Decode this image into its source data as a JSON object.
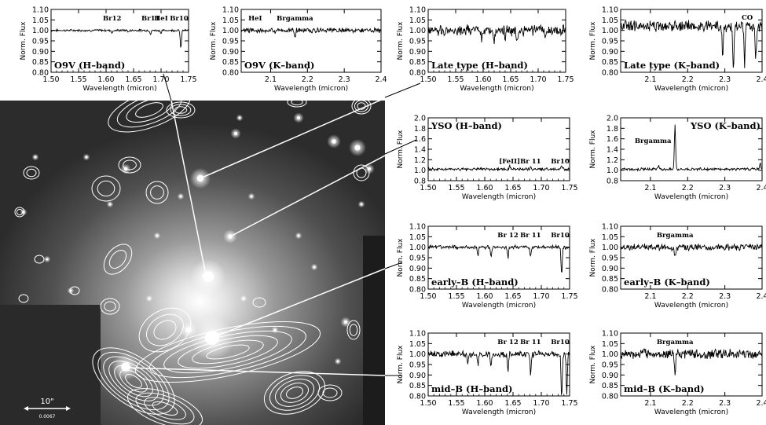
{
  "image": {
    "scale_bar_label": "10\"",
    "scale_bar_sublabel": "0.0067"
  },
  "chart_data": [
    {
      "id": "o9v-h",
      "type": "line",
      "title": "O9V (H–band)",
      "xlabel": "Wavelength (micron)",
      "ylabel": "Norm. Flux",
      "xlim": [
        1.5,
        1.75
      ],
      "ylim": [
        0.8,
        1.1
      ],
      "xticks": [
        "1.50",
        "1.55",
        "1.60",
        "1.65",
        "1.70",
        "1.75"
      ],
      "yticks": [
        "0.80",
        "0.85",
        "0.90",
        "0.95",
        "1.00",
        "1.05",
        "1.10"
      ],
      "lines": [
        {
          "label": "Br12",
          "x": 1.611
        },
        {
          "label": "Br11",
          "x": 1.681
        },
        {
          "label": "HeI",
          "x": 1.7
        },
        {
          "label": "Br10",
          "x": 1.736
        }
      ],
      "series": [
        {
          "baseline": 1.0,
          "noise": 0.004,
          "features": [
            [
              1.611,
              -0.012
            ],
            [
              1.641,
              -0.01
            ],
            [
              1.681,
              -0.02
            ],
            [
              1.7,
              -0.015
            ],
            [
              1.736,
              -0.09
            ]
          ]
        }
      ]
    },
    {
      "id": "o9v-k",
      "type": "line",
      "title": "O9V (K–band)",
      "xlabel": "Wavelength (micron)",
      "ylabel": "Norm. Flux",
      "xlim": [
        2.02,
        2.4
      ],
      "ylim": [
        0.8,
        1.1
      ],
      "xticks": [
        "2.1",
        "2.2",
        "2.3",
        "2.4"
      ],
      "xtick_values": [
        2.1,
        2.2,
        2.3,
        2.4
      ],
      "yticks": [
        "0.80",
        "0.85",
        "0.90",
        "0.95",
        "1.00",
        "1.05",
        "1.10"
      ],
      "lines": [
        {
          "label": "HeI",
          "x": 2.058
        },
        {
          "label": "Brgamma",
          "x": 2.166
        }
      ],
      "series": [
        {
          "baseline": 1.0,
          "noise": 0.009,
          "features": [
            [
              2.112,
              -0.015
            ],
            [
              2.166,
              -0.035
            ]
          ]
        }
      ]
    },
    {
      "id": "late-h",
      "type": "line",
      "title": "Late type (H–band)",
      "xlabel": "Wavelength (micron)",
      "ylabel": "Norm. Flux",
      "xlim": [
        1.5,
        1.75
      ],
      "ylim": [
        0.8,
        1.1
      ],
      "xticks": [
        "1.50",
        "1.55",
        "1.60",
        "1.65",
        "1.70",
        "1.75"
      ],
      "yticks": [
        "0.80",
        "0.85",
        "0.90",
        "0.95",
        "1.00",
        "1.05",
        "1.10"
      ],
      "lines": [],
      "series": [
        {
          "baseline": 1.0,
          "noise": 0.02,
          "features": [
            [
              1.598,
              -0.05
            ],
            [
              1.62,
              -0.07
            ],
            [
              1.64,
              -0.04
            ],
            [
              1.662,
              -0.05
            ],
            [
              1.713,
              -0.04
            ]
          ]
        }
      ]
    },
    {
      "id": "late-k",
      "type": "line",
      "title": "Late type (K–band)",
      "xlabel": "Wavelength (micron)",
      "ylabel": "Norm. Flux",
      "xlim": [
        2.02,
        2.4
      ],
      "ylim": [
        0.8,
        1.1
      ],
      "xticks": [
        "2.1",
        "2.2",
        "2.3",
        "2.4"
      ],
      "xtick_values": [
        2.1,
        2.2,
        2.3,
        2.4
      ],
      "yticks": [
        "0.80",
        "0.85",
        "0.90",
        "0.95",
        "1.00",
        "1.05",
        "1.10"
      ],
      "lines": [
        {
          "label": "CO",
          "x": 2.36
        }
      ],
      "series": [
        {
          "baseline": 1.02,
          "noise": 0.02,
          "features": [
            [
              2.294,
              -0.13
            ],
            [
              2.323,
              -0.2
            ],
            [
              2.353,
              -0.18
            ],
            [
              2.383,
              -0.17
            ]
          ]
        }
      ]
    },
    {
      "id": "yso-h",
      "type": "line",
      "title": "YSO (H–band)",
      "xlabel": "Wavelength (micron)",
      "ylabel": "Norm. Flux",
      "xlim": [
        1.5,
        1.75
      ],
      "ylim": [
        0.8,
        2.0
      ],
      "xticks": [
        "1.50",
        "1.55",
        "1.60",
        "1.65",
        "1.70",
        "1.75"
      ],
      "yticks": [
        "0.8",
        "1.0",
        "1.2",
        "1.4",
        "1.6",
        "1.8",
        "2.0"
      ],
      "lines": [
        {
          "label": "[FeII]",
          "x": 1.644
        },
        {
          "label": "Br 11",
          "x": 1.681
        },
        {
          "label": "Br10",
          "x": 1.736
        }
      ],
      "series": [
        {
          "baseline": 1.02,
          "noise": 0.02,
          "features": [
            [
              1.644,
              0.07
            ],
            [
              1.681,
              0.04
            ],
            [
              1.736,
              0.05
            ]
          ]
        }
      ]
    },
    {
      "id": "yso-k",
      "type": "line",
      "title": "YSO (K–band)",
      "xlabel": "Wavelength (micron)",
      "ylabel": "Norm. Flux",
      "xlim": [
        2.02,
        2.4
      ],
      "ylim": [
        0.8,
        2.0
      ],
      "xticks": [
        "2.1",
        "2.2",
        "2.3",
        "2.4"
      ],
      "xtick_values": [
        2.1,
        2.2,
        2.3,
        2.4
      ],
      "yticks": [
        "0.8",
        "1.0",
        "1.2",
        "1.4",
        "1.6",
        "1.8",
        "2.0"
      ],
      "lines": [
        {
          "label": "Brgamma",
          "x": 2.166
        }
      ],
      "series": [
        {
          "baseline": 1.02,
          "noise": 0.02,
          "features": [
            [
              2.166,
              0.85
            ],
            [
              2.122,
              0.05
            ],
            [
              2.395,
              0.12
            ]
          ]
        }
      ]
    },
    {
      "id": "earlyb-h",
      "type": "line",
      "title": "early–B (H–band)",
      "xlabel": "Wavelength (micron)",
      "ylabel": "Norm. Flux",
      "xlim": [
        1.5,
        1.75
      ],
      "ylim": [
        0.8,
        1.1
      ],
      "xticks": [
        "1.50",
        "1.55",
        "1.60",
        "1.65",
        "1.70",
        "1.75"
      ],
      "yticks": [
        "0.80",
        "0.85",
        "0.90",
        "0.95",
        "1.00",
        "1.05",
        "1.10"
      ],
      "lines": [
        {
          "label": "Br 12",
          "x": 1.641
        },
        {
          "label": "Br 11",
          "x": 1.681
        },
        {
          "label": "Br10",
          "x": 1.736
        }
      ],
      "series": [
        {
          "baseline": 1.0,
          "noise": 0.007,
          "features": [
            [
              1.588,
              -0.035
            ],
            [
              1.611,
              -0.04
            ],
            [
              1.641,
              -0.05
            ],
            [
              1.681,
              -0.05
            ],
            [
              1.736,
              -0.13
            ]
          ]
        }
      ]
    },
    {
      "id": "earlyb-k",
      "type": "line",
      "title": "early–B (K–band)",
      "xlabel": "Wavelength (micron)",
      "ylabel": "Norm. Flux",
      "xlim": [
        2.02,
        2.4
      ],
      "ylim": [
        0.8,
        1.1
      ],
      "xticks": [
        "2.1",
        "2.2",
        "2.3",
        "2.4"
      ],
      "xtick_values": [
        2.1,
        2.2,
        2.3,
        2.4
      ],
      "yticks": [
        "0.80",
        "0.85",
        "0.90",
        "0.95",
        "1.00",
        "1.05",
        "1.10"
      ],
      "lines": [
        {
          "label": "Brgamma",
          "x": 2.166
        }
      ],
      "series": [
        {
          "baseline": 1.0,
          "noise": 0.012,
          "features": [
            [
              2.166,
              -0.05
            ]
          ]
        }
      ]
    },
    {
      "id": "midb-h",
      "type": "line",
      "title": "mid–B (H–band)",
      "xlabel": "Wavelength (micron)",
      "ylabel": "Norm. Flux",
      "xlim": [
        1.5,
        1.75
      ],
      "ylim": [
        0.8,
        1.1
      ],
      "xticks": [
        "1.50",
        "1.55",
        "1.60",
        "1.65",
        "1.70",
        "1.75"
      ],
      "yticks": [
        "0.80",
        "0.85",
        "0.90",
        "0.95",
        "1.00",
        "1.05",
        "1.10"
      ],
      "lines": [
        {
          "label": "Br 12",
          "x": 1.641
        },
        {
          "label": "Br 11",
          "x": 1.681
        },
        {
          "label": "Br10",
          "x": 1.736
        }
      ],
      "series": [
        {
          "baseline": 1.0,
          "noise": 0.012,
          "features": [
            [
              1.57,
              -0.04
            ],
            [
              1.588,
              -0.05
            ],
            [
              1.611,
              -0.06
            ],
            [
              1.641,
              -0.08
            ],
            [
              1.681,
              -0.09
            ],
            [
              1.736,
              -0.2
            ],
            [
              1.745,
              -0.2
            ]
          ]
        }
      ]
    },
    {
      "id": "midb-k",
      "type": "line",
      "title": "mid–B (K–band)",
      "xlabel": "Wavelength (micron)",
      "ylabel": "Norm. Flux",
      "xlim": [
        2.02,
        2.4
      ],
      "ylim": [
        0.8,
        1.1
      ],
      "xticks": [
        "2.1",
        "2.2",
        "2.3",
        "2.4"
      ],
      "xtick_values": [
        2.1,
        2.2,
        2.3,
        2.4
      ],
      "yticks": [
        "0.80",
        "0.85",
        "0.90",
        "0.95",
        "1.00",
        "1.05",
        "1.10"
      ],
      "lines": [
        {
          "label": "Brgamma",
          "x": 2.166
        }
      ],
      "series": [
        {
          "baseline": 1.0,
          "noise": 0.018,
          "features": [
            [
              2.166,
              -0.1
            ]
          ]
        }
      ]
    }
  ]
}
